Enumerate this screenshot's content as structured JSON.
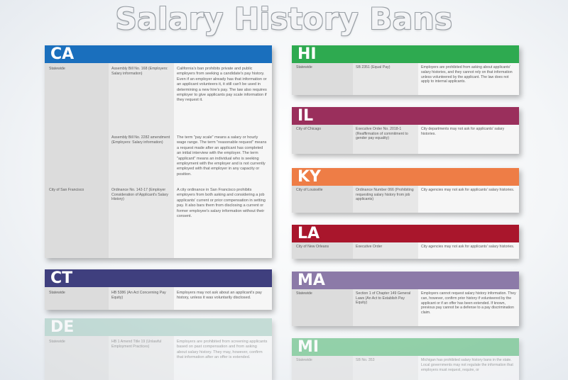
{
  "title": "Salary History Bans",
  "colors": {
    "CA": "#1a6fbd",
    "CT": "#3f3f7e",
    "DE": "#9ec8bc",
    "HI": "#2eaa50",
    "IL": "#9a2f5c",
    "KY": "#ee7d46",
    "LA": "#a9162c",
    "MA": "#8c7aa8",
    "MI": "#45b36a"
  },
  "states": {
    "CA": {
      "name": "CA",
      "rows": [
        {
          "jurisdiction": "Statewide",
          "law": "Assembly Bill No. 168 (Employers: Salary information)",
          "description": "California's ban prohibits private and public employers from seeking a candidate's pay history. Even if an employer already has that information or an applicant volunteers it, it still can't be used in determining a new hire's pay. The law also requires employer to give applicants pay scale information if they request it."
        },
        {
          "jurisdiction": "",
          "law": "Assembly Bill No. 2282 amendment (Employers: Salary information)",
          "description": "The term \"pay scale\" means a salary or hourly wage range. The term \"reasonable request\" means a request made after an applicant has completed an initial interview with the employer. The term \"applicant\" means an individual who is seeking employment with the employer and is not currently employed with that employer in any capacity or position."
        },
        {
          "jurisdiction": "City of San Francisco",
          "law": "Ordinance No. 142-17 (Employer Consideration of Applicant's Salary History)",
          "description": "A city ordinance in San Francisco prohibits employers from both asking and considering a job applicants' current or prior compensation in setting pay. It also bars them from disclosing a current or former employee's salary information without their consent."
        }
      ]
    },
    "CT": {
      "name": "CT",
      "rows": [
        {
          "jurisdiction": "Statewide",
          "law": "HB 5386 (An Act Concerning Pay Equity)",
          "description": "Employers may not ask about an applicant's pay history, unless it was voluntarily disclosed."
        }
      ]
    },
    "DE": {
      "name": "DE",
      "rows": [
        {
          "jurisdiction": "Statewide",
          "law": "HB 1 Amend Title 19 (Unlawful Employment Practices)",
          "description": "Employers are prohibited from screening applicants based on past compensation and from asking about salary history. They may, however, confirm that information after an offer is extended."
        }
      ]
    },
    "HI": {
      "name": "HI",
      "rows": [
        {
          "jurisdiction": "Statewide",
          "law": "SB 2351 (Equal Pay)",
          "description": "Employers are prohibited from asking about applicants' salary histories, and they cannot rely on that information unless volunteered by the applicant. The law does not apply to internal applicants."
        }
      ]
    },
    "IL": {
      "name": "IL",
      "rows": [
        {
          "jurisdiction": "City of Chicago",
          "law": "Executive Order No. 2018-1 (Reaffirmation of commitment to gender pay equality)",
          "description": "City departments may not ask for applicants' salary histories."
        }
      ]
    },
    "KY": {
      "name": "KY",
      "rows": [
        {
          "jurisdiction": "City of Louisville",
          "law": "Ordinance Number 066 (Prohibiting requesting salary history from job applicants)",
          "description": "City agencies may not ask for applicants' salary histories."
        }
      ]
    },
    "LA": {
      "name": "LA",
      "rows": [
        {
          "jurisdiction": "City of New Orleans",
          "law": "Executive Order",
          "description": "City agencies may not ask for applicants' salary histories."
        }
      ]
    },
    "MA": {
      "name": "MA",
      "rows": [
        {
          "jurisdiction": "Statewide",
          "law": "Section 1 of Chapter 149 General Laws (An Act to Establish Pay Equity)",
          "description": "Employers cannot request salary history information. They can, however, confirm prior history if volunteered by the applicant or if an offer has been extended. If known, previous pay cannot be a defense to a pay discrimination claim."
        }
      ]
    },
    "MI": {
      "name": "MI",
      "rows": [
        {
          "jurisdiction": "Statewide",
          "law": "SB No. 353",
          "description": "Michigan has prohibited salary history bans in the state. Local governments may not regulate the information that employers must request, require, or"
        }
      ]
    }
  }
}
